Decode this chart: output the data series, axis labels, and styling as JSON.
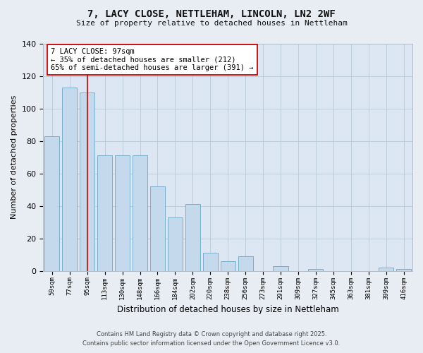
{
  "title": "7, LACY CLOSE, NETTLEHAM, LINCOLN, LN2 2WF",
  "subtitle": "Size of property relative to detached houses in Nettleham",
  "xlabel": "Distribution of detached houses by size in Nettleham",
  "ylabel": "Number of detached properties",
  "categories": [
    "59sqm",
    "77sqm",
    "95sqm",
    "113sqm",
    "130sqm",
    "148sqm",
    "166sqm",
    "184sqm",
    "202sqm",
    "220sqm",
    "238sqm",
    "256sqm",
    "273sqm",
    "291sqm",
    "309sqm",
    "327sqm",
    "345sqm",
    "363sqm",
    "381sqm",
    "399sqm",
    "416sqm"
  ],
  "values": [
    83,
    113,
    110,
    71,
    71,
    71,
    52,
    33,
    41,
    11,
    6,
    9,
    0,
    3,
    0,
    1,
    0,
    0,
    0,
    2,
    1
  ],
  "bar_color": "#c5d9ed",
  "bar_edge_color": "#7aaecb",
  "ylim": [
    0,
    140
  ],
  "yticks": [
    0,
    20,
    40,
    60,
    80,
    100,
    120,
    140
  ],
  "vline_x_index": 2,
  "vline_color": "#cc0000",
  "annotation_title": "7 LACY CLOSE: 97sqm",
  "annotation_line1": "← 35% of detached houses are smaller (212)",
  "annotation_line2": "65% of semi-detached houses are larger (391) →",
  "annotation_box_color": "#ffffff",
  "annotation_box_edge": "#cc0000",
  "footer_line1": "Contains HM Land Registry data © Crown copyright and database right 2025.",
  "footer_line2": "Contains public sector information licensed under the Open Government Licence v3.0.",
  "background_color": "#e8edf3",
  "plot_bg_color": "#dce7f3"
}
